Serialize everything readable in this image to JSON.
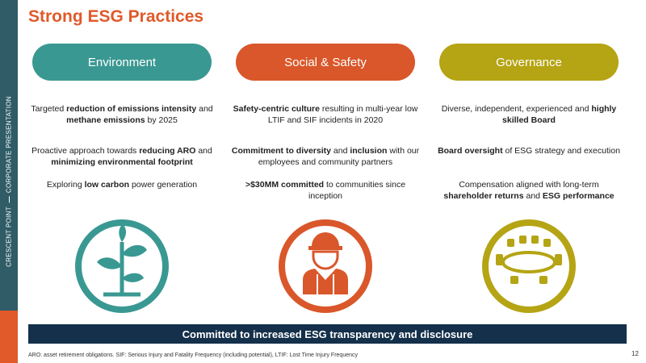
{
  "title": "Strong ESG Practices",
  "side_label": [
    "CRESCENT POINT",
    "CORPORATE PRESENTATION"
  ],
  "columns": [
    {
      "heading": "Environment",
      "color": "#3a9892",
      "items": [
        [
          {
            "text": "Targeted "
          },
          {
            "text": "reduction of emissions intensity",
            "bold": true
          },
          {
            "text": " and "
          },
          {
            "text": "methane emissions",
            "bold": true
          },
          {
            "text": " by 2025"
          }
        ],
        [
          {
            "text": "Proactive approach towards "
          },
          {
            "text": "reducing ARO",
            "bold": true
          },
          {
            "text": " and "
          },
          {
            "text": "minimizing environmental footprint",
            "bold": true
          }
        ],
        [
          {
            "text": "Exploring "
          },
          {
            "text": "low carbon",
            "bold": true
          },
          {
            "text": " power generation"
          }
        ]
      ]
    },
    {
      "heading": "Social & Safety",
      "color": "#d9572a",
      "items": [
        [
          {
            "text": "Safety-centric culture",
            "bold": true
          },
          {
            "text": " resulting in multi-year low LTIF and SIF incidents in 2020"
          }
        ],
        [
          {
            "text": "Commitment to diversity",
            "bold": true
          },
          {
            "text": " and "
          },
          {
            "text": "inclusion",
            "bold": true
          },
          {
            "text": " with our employees and community partners"
          }
        ],
        [
          {
            "text": ">$30MM committed",
            "bold": true
          },
          {
            "text": " to communities since inception"
          }
        ]
      ]
    },
    {
      "heading": "Governance",
      "color": "#b5a414",
      "items": [
        [
          {
            "text": "Diverse, independent, experienced and "
          },
          {
            "text": "highly skilled Board",
            "bold": true
          }
        ],
        [
          {
            "text": "Board oversight",
            "bold": true
          },
          {
            "text": " of ESG strategy and execution"
          }
        ],
        [
          {
            "text": "Compensation aligned with long-term "
          },
          {
            "text": "shareholder returns",
            "bold": true
          },
          {
            "text": " and "
          },
          {
            "text": "ESG performance",
            "bold": true
          }
        ]
      ]
    }
  ],
  "banner": "Committed to increased ESG transparency and disclosure",
  "footnote": "ARO: asset retirement obligations. SIF: Serious Injury and Fatality Frequency (including potential), LTIF: Lost Time Injury Frequency",
  "page_number": "12"
}
